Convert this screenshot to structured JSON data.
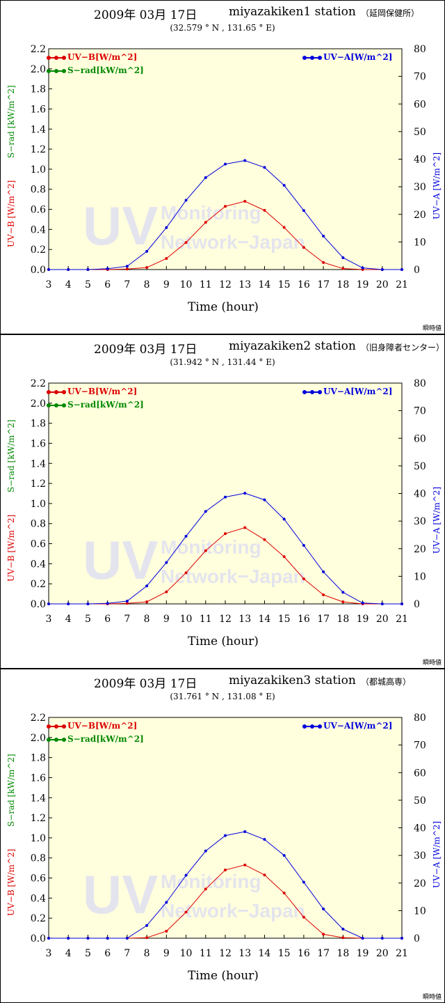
{
  "note_label": "瞬時値",
  "legend": {
    "uvb": "UV−B[W/m^2]",
    "srad": "S−rad[kW/m^2]",
    "uva": "UV−A[W/m^2]"
  },
  "axis_labels": {
    "x": "Time (hour)",
    "y_uvb": "UV−B [W/m^2]",
    "y_srad": "S−rad [kW/m^2]",
    "y_uva": "UV−A [W/m^2]"
  },
  "colors": {
    "uvb": "#dd0000",
    "srad": "#008800",
    "uva": "#0000dd",
    "plot_bg": "#ffffdd",
    "watermark": "#e4e4ee"
  },
  "watermark": {
    "big": "UV",
    "line1": "Monitoring",
    "line2": "Network−Japan"
  },
  "chart_data": [
    {
      "type": "line",
      "title": "2009年 03月 17日",
      "station": "miyazakiken1 station",
      "site": "（延岡保健所）",
      "coords": "(32.579 ° N ,  131.65 ° E)",
      "x": [
        3,
        4,
        5,
        6,
        7,
        8,
        9,
        10,
        11,
        12,
        13,
        14,
        15,
        16,
        17,
        18,
        19,
        20,
        21
      ],
      "ylim_left": [
        0,
        2.2
      ],
      "yticks_left": [
        "0.0",
        "0.2",
        "0.4",
        "0.6",
        "0.8",
        "1.0",
        "1.2",
        "1.4",
        "1.6",
        "1.8",
        "2.0",
        "2.2"
      ],
      "ylim_right": [
        0,
        80
      ],
      "yticks_right": [
        "0",
        "10",
        "20",
        "30",
        "40",
        "50",
        "60",
        "70",
        "80"
      ],
      "series": [
        {
          "name": "UV−B[W/m^2]",
          "axis": "left",
          "values": [
            0,
            0,
            0,
            0,
            0.005,
            0.02,
            0.11,
            0.27,
            0.47,
            0.63,
            0.68,
            0.59,
            0.42,
            0.22,
            0.07,
            0.01,
            0,
            0,
            0
          ]
        },
        {
          "name": "UV−A[W/m^2]",
          "axis": "right",
          "values": [
            0,
            0,
            0,
            0.3,
            1.2,
            6.6,
            15.2,
            25.1,
            33.3,
            38.2,
            39.5,
            37.0,
            30.5,
            21.4,
            12.1,
            4.3,
            0.6,
            0,
            0
          ]
        }
      ]
    },
    {
      "type": "line",
      "title": "2009年 03月 17日",
      "station": "miyazakiken2 station",
      "site": "（旧身障者センター）",
      "coords": "(31.942 ° N ,  131.44 ° E)",
      "x": [
        3,
        4,
        5,
        6,
        7,
        8,
        9,
        10,
        11,
        12,
        13,
        14,
        15,
        16,
        17,
        18,
        19,
        20,
        21
      ],
      "ylim_left": [
        0,
        2.2
      ],
      "yticks_left": [
        "0.0",
        "0.2",
        "0.4",
        "0.6",
        "0.8",
        "1.0",
        "1.2",
        "1.4",
        "1.6",
        "1.8",
        "2.0",
        "2.2"
      ],
      "ylim_right": [
        0,
        80
      ],
      "yticks_right": [
        "0",
        "10",
        "20",
        "30",
        "40",
        "50",
        "60",
        "70",
        "80"
      ],
      "series": [
        {
          "name": "UV−B[W/m^2]",
          "axis": "left",
          "values": [
            0,
            0,
            0,
            0,
            0.005,
            0.02,
            0.12,
            0.31,
            0.53,
            0.7,
            0.76,
            0.64,
            0.47,
            0.25,
            0.09,
            0.02,
            0,
            0,
            0
          ]
        },
        {
          "name": "UV−A[W/m^2]",
          "axis": "right",
          "values": [
            0,
            0,
            0,
            0.2,
            1.0,
            6.5,
            15.0,
            24.5,
            33.5,
            38.7,
            40.1,
            37.7,
            30.7,
            21.2,
            11.6,
            4.2,
            0.3,
            0,
            0
          ]
        }
      ]
    },
    {
      "type": "line",
      "title": "2009年 03月 17日",
      "station": "miyazakiken3 station",
      "site": "（都城高専）",
      "coords": "(31.761 ° N ,  131.08 ° E)",
      "x": [
        3,
        4,
        5,
        6,
        7,
        8,
        9,
        10,
        11,
        12,
        13,
        14,
        15,
        16,
        17,
        18,
        19,
        20,
        21
      ],
      "ylim_left": [
        0,
        2.2
      ],
      "yticks_left": [
        "0.0",
        "0.2",
        "0.4",
        "0.6",
        "0.8",
        "1.0",
        "1.2",
        "1.4",
        "1.6",
        "1.8",
        "2.0",
        "2.2"
      ],
      "ylim_right": [
        0,
        80
      ],
      "yticks_right": [
        "0",
        "10",
        "20",
        "30",
        "40",
        "50",
        "60",
        "70",
        "80"
      ],
      "series": [
        {
          "name": "UV−B[W/m^2]",
          "axis": "left",
          "values": [
            0,
            0,
            0,
            0,
            0,
            0.005,
            0.07,
            0.26,
            0.49,
            0.68,
            0.73,
            0.63,
            0.45,
            0.21,
            0.04,
            0.005,
            0,
            0,
            0
          ]
        },
        {
          "name": "UV−A[W/m^2]",
          "axis": "right",
          "values": [
            0,
            0,
            0,
            0,
            0,
            4.6,
            13.0,
            22.8,
            31.6,
            37.2,
            38.6,
            35.8,
            30.0,
            20.3,
            10.6,
            3.3,
            0,
            0,
            0
          ]
        }
      ]
    }
  ]
}
